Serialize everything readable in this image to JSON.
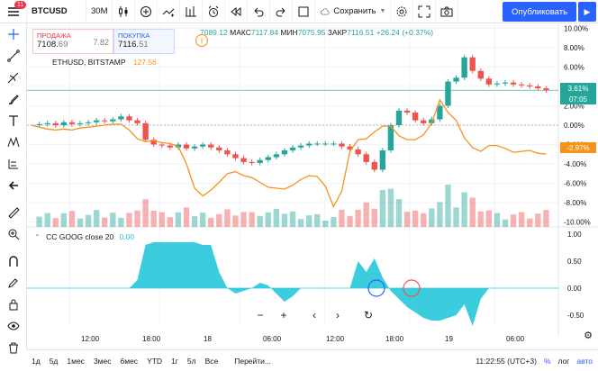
{
  "toolbar": {
    "menu_badge": "11",
    "symbol": "BTCUSD",
    "interval": "30M",
    "save_label": "Сохранить",
    "publish_label": "Опубликовать"
  },
  "trade": {
    "sell_label": "ПРОДАЖА",
    "sell_price_main": "7108.",
    "sell_price_small": "69",
    "spread": "7.82",
    "buy_label": "ПОКУПКА",
    "buy_price_main": "7116.",
    "buy_price_small": "51"
  },
  "ohlc": {
    "open": "7089.12",
    "high_label": "МАКС",
    "high": "7117.84",
    "low_label": "МИН",
    "low": "7075.95",
    "close_label": "ЗАКР",
    "close": "7116.51",
    "change": "+26.24 (+0.37%)"
  },
  "compare": {
    "label": "ETHUSD, BITSTAMP",
    "value": "127.56"
  },
  "indicator": {
    "label": "CC GOOG close 20",
    "value": "0.00"
  },
  "price_axis": [
    "10.00%",
    "8.00%",
    "6.00%",
    "4.00%",
    "2.00%",
    "0.00%",
    "-2.00%",
    "-4.00%",
    "-6.00%",
    "-8.00%",
    "-10.00%"
  ],
  "indicator_axis": [
    "1.00",
    "0.50",
    "0.00",
    "-0.50"
  ],
  "price_badges": {
    "main_pct": "3.61%",
    "main_time": "07:05",
    "compare_pct": "-2.97%"
  },
  "time_axis": [
    "12:00",
    "18:00",
    "18",
    "06:00",
    "12:00",
    "18:00",
    "19",
    "06:00"
  ],
  "bottom": {
    "ranges": [
      "1д",
      "5д",
      "1мес",
      "3мес",
      "6мес",
      "YTD",
      "1г",
      "5л",
      "Все"
    ],
    "goto": "Перейти...",
    "clock": "11:22:55 (UTC+3)",
    "percent": "%",
    "log": "лог",
    "auto": "авто"
  },
  "colors": {
    "up": "#26a69a",
    "down": "#ef5350",
    "compare": "#f7931a",
    "indicator": "#26c6da",
    "accent": "#2962ff"
  },
  "chart_data": {
    "type": "candlestick",
    "y_unit": "%",
    "ylim": [
      -10.5,
      10.5
    ],
    "series": [
      {
        "name": "BTCUSD",
        "values": [
          0.0,
          0.1,
          0.2,
          0.0,
          0.3,
          0.1,
          0.2,
          0.3,
          0.5,
          0.4,
          0.6,
          0.9,
          0.5,
          0.2,
          -1.5,
          -2.0,
          -2.1,
          -2.3,
          -2.0,
          -2.4,
          -2.2,
          -2.0,
          -2.3,
          -2.6,
          -3.0,
          -3.4,
          -3.8,
          -3.9,
          -3.6,
          -3.3,
          -3.0,
          -2.6,
          -2.3,
          -2.1,
          -1.9,
          -1.9,
          -1.9,
          -1.9,
          -2.2,
          -2.5,
          -3.0,
          -3.8,
          -4.6,
          -2.6,
          0.0,
          1.5,
          1.3,
          0.5,
          0.2,
          0.6,
          2.0,
          4.5,
          4.9,
          7.0,
          5.6,
          4.8,
          4.2,
          4.3,
          4.4,
          4.2,
          4.1,
          4.0,
          3.8,
          3.6
        ]
      },
      {
        "name": "ETHUSD",
        "values": [
          0.0,
          -0.2,
          -0.4,
          -0.5,
          -0.4,
          -0.5,
          -0.3,
          -0.2,
          -0.1,
          0.0,
          0.1,
          0.1,
          -0.5,
          -1.4,
          -1.7,
          -1.6,
          -1.8,
          -1.9,
          -2.2,
          -4.0,
          -6.5,
          -7.3,
          -6.7,
          -5.9,
          -5.0,
          -4.8,
          -5.2,
          -5.4,
          -5.9,
          -6.4,
          -6.5,
          -6.6,
          -6.2,
          -5.6,
          -5.2,
          -5.3,
          -6.3,
          -8.4,
          -6.8,
          -2.7,
          -1.5,
          -1.4,
          -0.7,
          -0.1,
          -0.1,
          -1.1,
          -1.5,
          -1.5,
          -1.0,
          0.2,
          2.6,
          1.3,
          0.5,
          -1.3,
          -2.3,
          -2.7,
          -2.1,
          -2.1,
          -2.4,
          -2.8,
          -2.7,
          -2.6,
          -2.9,
          -2.97
        ]
      }
    ],
    "indicator_series": {
      "name": "CC GOOG close 20",
      "values": [
        0,
        0,
        0,
        0,
        0,
        0,
        0,
        0,
        0,
        0,
        0,
        0,
        0,
        0.15,
        0.8,
        0.85,
        0.85,
        0.85,
        0.85,
        0.85,
        0.85,
        0.8,
        0.8,
        0.3,
        0.0,
        -0.1,
        -0.05,
        0.0,
        0.1,
        0.05,
        -0.1,
        -0.25,
        -0.15,
        0.0,
        0.0,
        0.0,
        0.0,
        0.0,
        0.0,
        0.0,
        0.5,
        0.3,
        0.55,
        0.2,
        -0.05,
        -0.2,
        -0.35,
        -0.45,
        -0.55,
        -0.6,
        -0.6,
        -0.55,
        -0.5,
        -0.3,
        -0.7,
        -0.2,
        0.0,
        0.0,
        0.0,
        0.0,
        0.0,
        0.0,
        0.0,
        0.0
      ]
    }
  }
}
